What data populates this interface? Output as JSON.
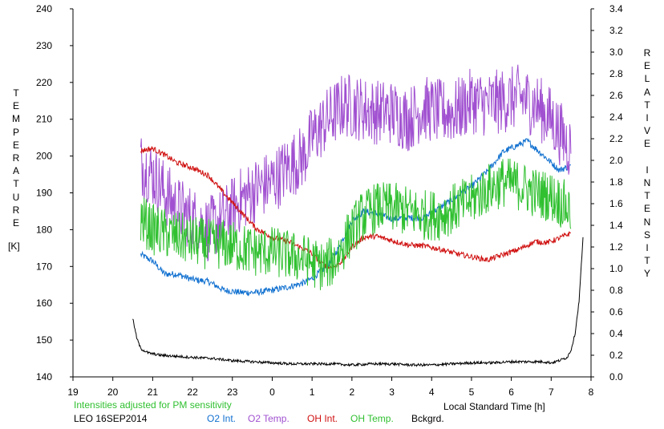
{
  "chart_data": {
    "type": "line",
    "left_axis_label": "TEMPERATURE",
    "left_axis_unit": "[K]",
    "right_axis_label": "RELATIVE INTENSITY",
    "xlabel": "Local Standard Time [h]",
    "left_ylim": [
      140,
      240
    ],
    "left_yticks": [
      "240",
      "230",
      "220",
      "210",
      "200",
      "190",
      "180",
      "170",
      "160",
      "150",
      "140"
    ],
    "right_ylim": [
      0.0,
      3.4
    ],
    "right_yticks": [
      "3.4",
      "3.2",
      "3.0",
      "2.8",
      "2.6",
      "2.4",
      "2.2",
      "2.0",
      "1.8",
      "1.6",
      "1.4",
      "1.2",
      "1.0",
      "0.8",
      "0.6",
      "0.4",
      "0.2",
      "0.0"
    ],
    "xlim": [
      19,
      32
    ],
    "xticks": [
      "19",
      "20",
      "21",
      "22",
      "23",
      "0",
      "1",
      "2",
      "3",
      "4",
      "5",
      "6",
      "7",
      "8"
    ],
    "note": "Intensities adjusted for PM sensitivity",
    "station": "LEO 16SEP2014",
    "series": [
      {
        "name": "O2 Int.",
        "axis": "right",
        "color": "#1070d0",
        "x": [
          20.7,
          21.0,
          21.3,
          21.6,
          22.0,
          22.4,
          22.8,
          23.2,
          23.6,
          24.0,
          24.4,
          24.8,
          25.0,
          25.2,
          25.4,
          25.6,
          25.8,
          26.0,
          26.3,
          26.6,
          27.0,
          27.4,
          27.8,
          28.2,
          28.6,
          29.0,
          29.4,
          29.8,
          30.1,
          30.4,
          30.7,
          31.0,
          31.2,
          31.5
        ],
        "values": [
          1.13,
          1.07,
          0.95,
          0.95,
          0.9,
          0.88,
          0.8,
          0.78,
          0.78,
          0.8,
          0.83,
          0.87,
          0.91,
          0.97,
          1.03,
          1.15,
          1.29,
          1.44,
          1.53,
          1.51,
          1.46,
          1.47,
          1.47,
          1.56,
          1.66,
          1.76,
          1.9,
          2.08,
          2.13,
          2.18,
          2.08,
          1.98,
          1.91,
          1.95
        ]
      },
      {
        "name": "O2 Temp.",
        "axis": "left",
        "color": "#a050d0",
        "x": [
          20.7,
          21.0,
          21.3,
          21.6,
          22.0,
          22.4,
          22.8,
          23.2,
          23.6,
          24.0,
          24.4,
          24.8,
          25.0,
          25.4,
          25.8,
          26.2,
          26.6,
          27.0,
          27.4,
          27.8,
          28.2,
          28.6,
          29.0,
          29.4,
          29.8,
          30.2,
          30.6,
          31.0,
          31.3,
          31.5
        ],
        "values": [
          198,
          195,
          190,
          186,
          183,
          180,
          183,
          188,
          191,
          193,
          197,
          200,
          205,
          210,
          214,
          213,
          212,
          212,
          210,
          213,
          212,
          212,
          215,
          214,
          215,
          216,
          214,
          210,
          205,
          202
        ]
      },
      {
        "name": "OH Int.",
        "axis": "right",
        "color": "#d01010",
        "x": [
          20.7,
          21.0,
          21.3,
          21.6,
          22.0,
          22.4,
          22.8,
          23.2,
          23.6,
          24.0,
          24.4,
          24.8,
          25.0,
          25.2,
          25.4,
          25.6,
          25.8,
          26.0,
          26.3,
          26.6,
          27.0,
          27.4,
          27.8,
          28.2,
          28.6,
          29.0,
          29.4,
          29.8,
          30.2,
          30.6,
          30.9,
          31.2,
          31.5
        ],
        "values": [
          2.09,
          2.11,
          2.05,
          1.98,
          1.93,
          1.86,
          1.69,
          1.53,
          1.37,
          1.29,
          1.25,
          1.18,
          1.14,
          1.06,
          1.01,
          1.02,
          1.09,
          1.2,
          1.29,
          1.3,
          1.26,
          1.22,
          1.21,
          1.18,
          1.14,
          1.11,
          1.08,
          1.13,
          1.18,
          1.25,
          1.24,
          1.28,
          1.33
        ]
      },
      {
        "name": "OH Temp.",
        "axis": "left",
        "color": "#30c030",
        "x": [
          20.7,
          21.0,
          21.3,
          21.6,
          22.0,
          22.4,
          22.8,
          23.2,
          23.6,
          24.0,
          24.4,
          24.8,
          25.0,
          25.3,
          25.6,
          25.9,
          26.2,
          26.6,
          27.0,
          27.4,
          27.8,
          28.2,
          28.6,
          29.0,
          29.4,
          29.8,
          30.2,
          30.6,
          31.0,
          31.3,
          31.5
        ],
        "values": [
          183,
          180,
          179,
          178,
          177,
          176,
          176,
          175,
          174,
          174,
          173,
          172,
          171,
          170,
          172,
          178,
          183,
          186,
          186,
          185,
          184,
          184,
          186,
          188,
          191,
          193,
          192,
          190,
          189,
          187,
          185
        ]
      },
      {
        "name": "Bckgrd.",
        "axis": "right",
        "color": "#000000",
        "x": [
          20.5,
          20.6,
          20.7,
          20.9,
          21.2,
          21.6,
          22.0,
          22.5,
          23.0,
          23.5,
          24.0,
          24.5,
          25.0,
          25.5,
          26.0,
          26.5,
          27.0,
          27.5,
          28.0,
          28.5,
          29.0,
          29.5,
          30.0,
          30.4,
          30.8,
          31.0,
          31.2,
          31.4,
          31.5,
          31.6,
          31.7,
          31.75,
          31.8
        ],
        "values": [
          0.54,
          0.36,
          0.26,
          0.22,
          0.2,
          0.19,
          0.18,
          0.17,
          0.15,
          0.14,
          0.13,
          0.12,
          0.12,
          0.12,
          0.11,
          0.12,
          0.12,
          0.11,
          0.11,
          0.12,
          0.13,
          0.13,
          0.14,
          0.14,
          0.14,
          0.13,
          0.15,
          0.18,
          0.25,
          0.4,
          0.7,
          1.0,
          1.29
        ]
      }
    ]
  }
}
